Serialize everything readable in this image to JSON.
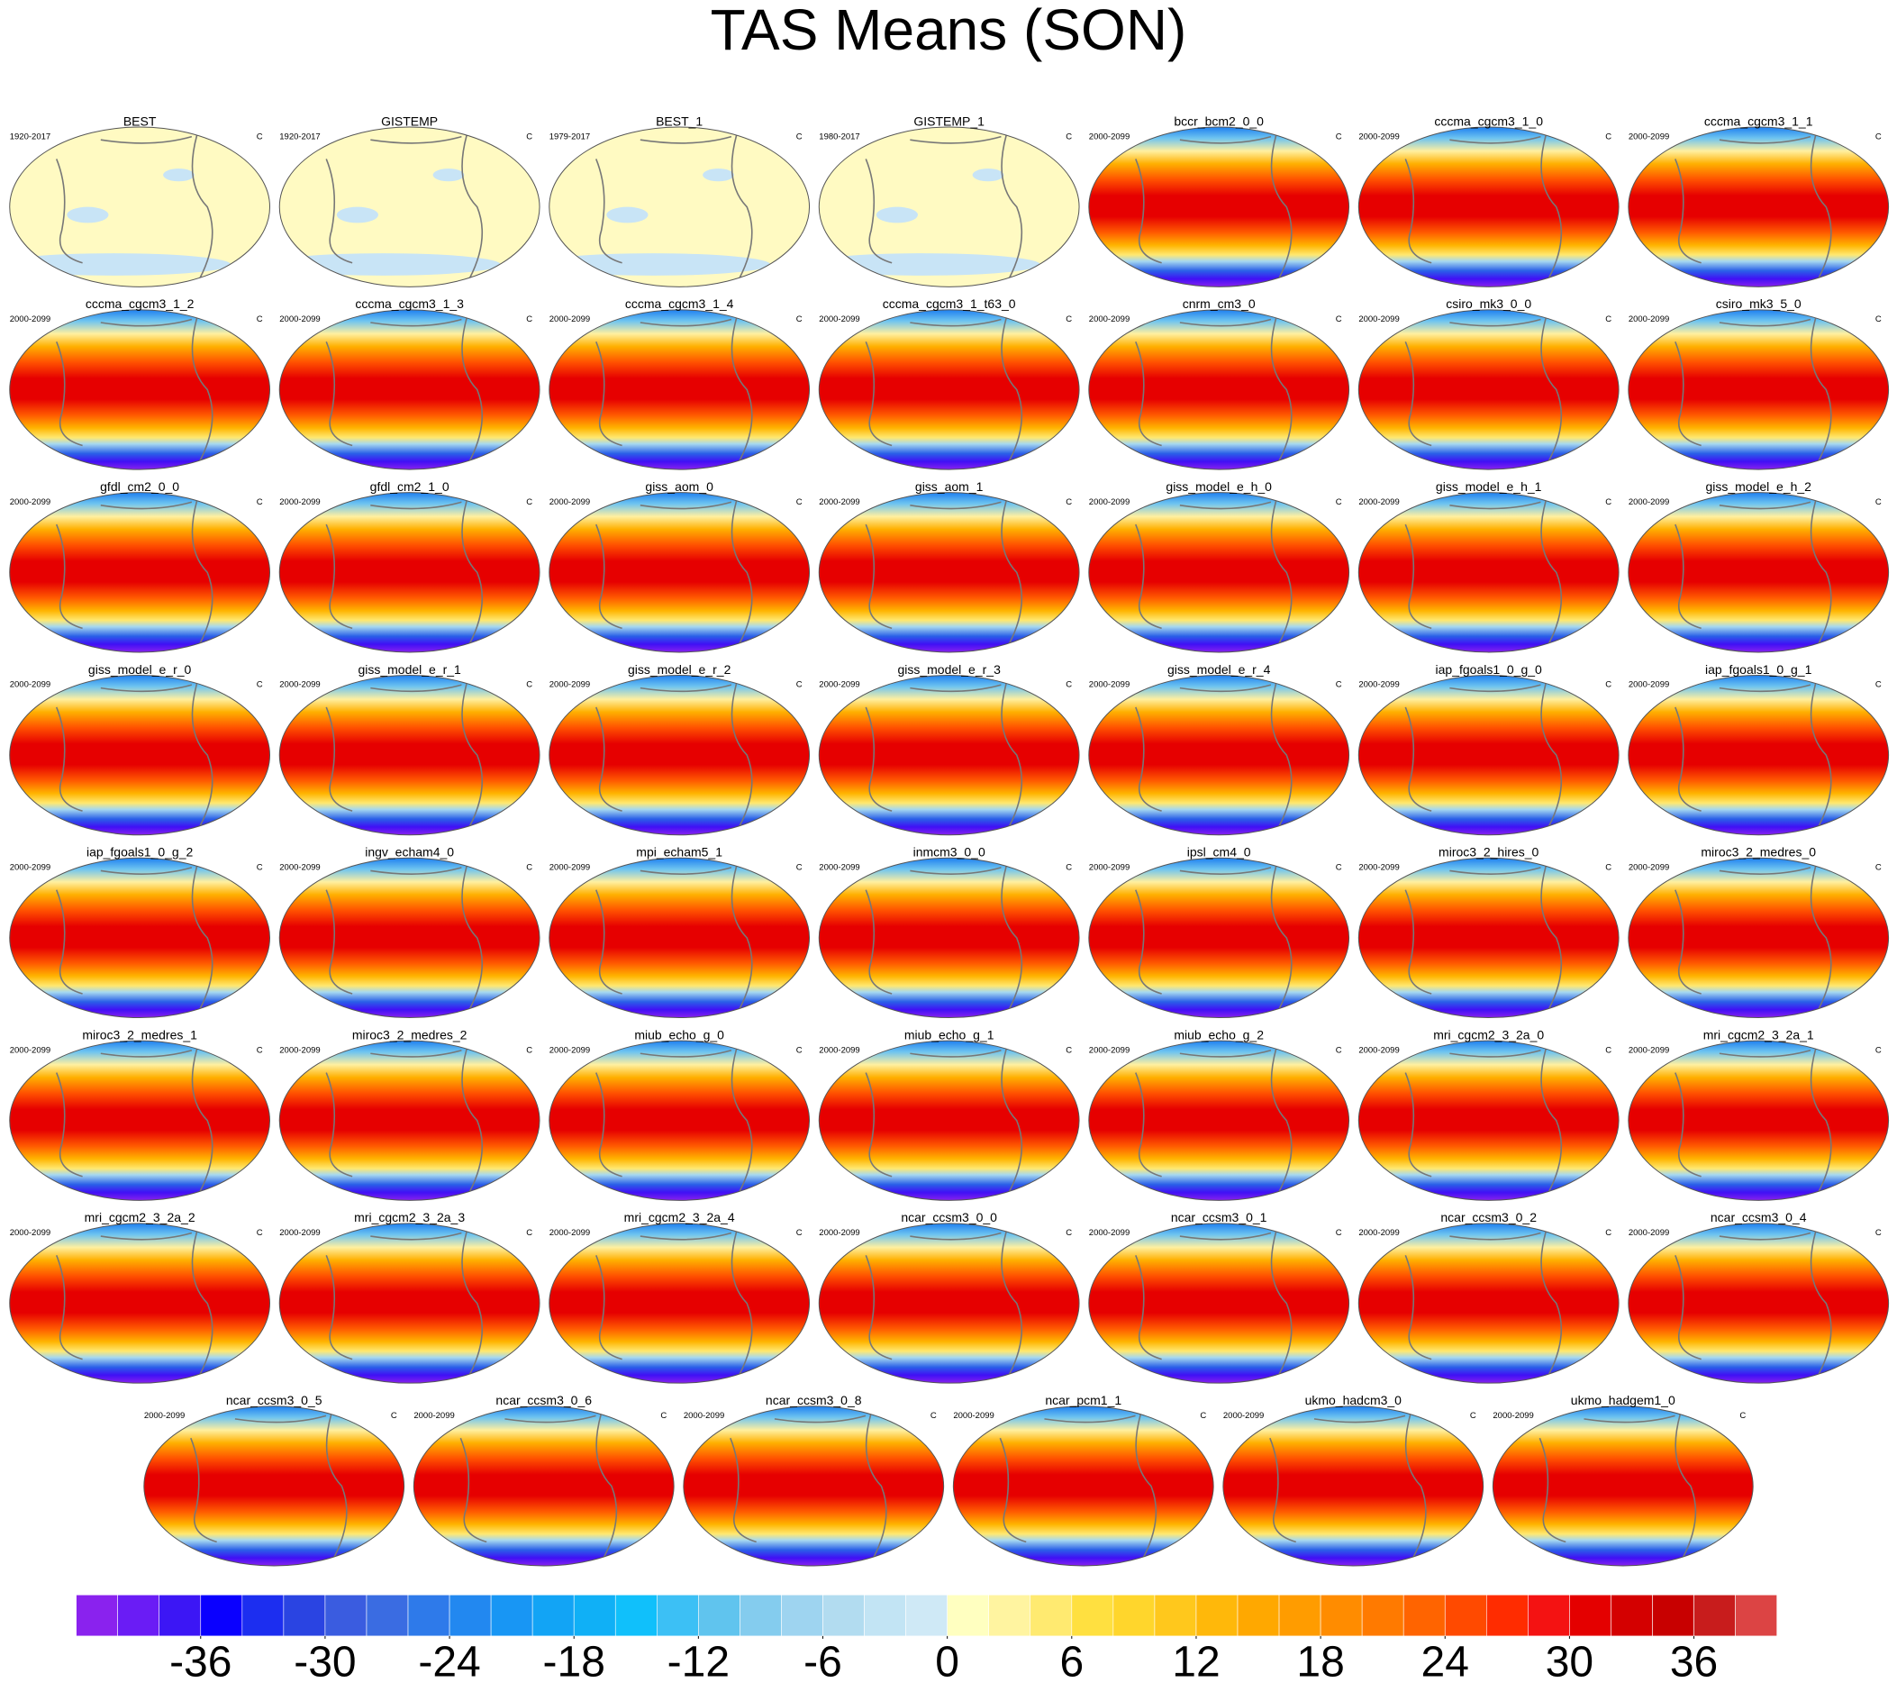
{
  "chart_data": {
    "type": "map-panels",
    "title": "TAS Means (SON)",
    "panels": [
      {
        "title": "BEST",
        "period": "1920-2017",
        "units": "C"
      },
      {
        "title": "GISTEMP",
        "period": "1920-2017",
        "units": "C"
      },
      {
        "title": "BEST_1",
        "period": "1979-2017",
        "units": "C"
      },
      {
        "title": "GISTEMP_1",
        "period": "1980-2017",
        "units": "C"
      },
      {
        "title": "bccr_bcm2_0_0",
        "period": "2000-2099",
        "units": "C"
      },
      {
        "title": "cccma_cgcm3_1_0",
        "period": "2000-2099",
        "units": "C"
      },
      {
        "title": "cccma_cgcm3_1_1",
        "period": "2000-2099",
        "units": "C"
      },
      {
        "title": "cccma_cgcm3_1_2",
        "period": "2000-2099",
        "units": "C"
      },
      {
        "title": "cccma_cgcm3_1_3",
        "period": "2000-2099",
        "units": "C"
      },
      {
        "title": "cccma_cgcm3_1_4",
        "period": "2000-2099",
        "units": "C"
      },
      {
        "title": "cccma_cgcm3_1_t63_0",
        "period": "2000-2099",
        "units": "C"
      },
      {
        "title": "cnrm_cm3_0",
        "period": "2000-2099",
        "units": "C"
      },
      {
        "title": "csiro_mk3_0_0",
        "period": "2000-2099",
        "units": "C"
      },
      {
        "title": "csiro_mk3_5_0",
        "period": "2000-2099",
        "units": "C"
      },
      {
        "title": "gfdl_cm2_0_0",
        "period": "2000-2099",
        "units": "C"
      },
      {
        "title": "gfdl_cm2_1_0",
        "period": "2000-2099",
        "units": "C"
      },
      {
        "title": "giss_aom_0",
        "period": "2000-2099",
        "units": "C"
      },
      {
        "title": "giss_aom_1",
        "period": "2000-2099",
        "units": "C"
      },
      {
        "title": "giss_model_e_h_0",
        "period": "2000-2099",
        "units": "C"
      },
      {
        "title": "giss_model_e_h_1",
        "period": "2000-2099",
        "units": "C"
      },
      {
        "title": "giss_model_e_h_2",
        "period": "2000-2099",
        "units": "C"
      },
      {
        "title": "giss_model_e_r_0",
        "period": "2000-2099",
        "units": "C"
      },
      {
        "title": "giss_model_e_r_1",
        "period": "2000-2099",
        "units": "C"
      },
      {
        "title": "giss_model_e_r_2",
        "period": "2000-2099",
        "units": "C"
      },
      {
        "title": "giss_model_e_r_3",
        "period": "2000-2099",
        "units": "C"
      },
      {
        "title": "giss_model_e_r_4",
        "period": "2000-2099",
        "units": "C"
      },
      {
        "title": "iap_fgoals1_0_g_0",
        "period": "2000-2099",
        "units": "C"
      },
      {
        "title": "iap_fgoals1_0_g_1",
        "period": "2000-2099",
        "units": "C"
      },
      {
        "title": "iap_fgoals1_0_g_2",
        "period": "2000-2099",
        "units": "C"
      },
      {
        "title": "ingv_echam4_0",
        "period": "2000-2099",
        "units": "C"
      },
      {
        "title": "mpi_echam5_1",
        "period": "2000-2099",
        "units": "C"
      },
      {
        "title": "inmcm3_0_0",
        "period": "2000-2099",
        "units": "C"
      },
      {
        "title": "ipsl_cm4_0",
        "period": "2000-2099",
        "units": "C"
      },
      {
        "title": "miroc3_2_hires_0",
        "period": "2000-2099",
        "units": "C"
      },
      {
        "title": "miroc3_2_medres_0",
        "period": "2000-2099",
        "units": "C"
      },
      {
        "title": "miroc3_2_medres_1",
        "period": "2000-2099",
        "units": "C"
      },
      {
        "title": "miroc3_2_medres_2",
        "period": "2000-2099",
        "units": "C"
      },
      {
        "title": "miub_echo_g_0",
        "period": "2000-2099",
        "units": "C"
      },
      {
        "title": "miub_echo_g_1",
        "period": "2000-2099",
        "units": "C"
      },
      {
        "title": "miub_echo_g_2",
        "period": "2000-2099",
        "units": "C"
      },
      {
        "title": "mri_cgcm2_3_2a_0",
        "period": "2000-2099",
        "units": "C"
      },
      {
        "title": "mri_cgcm2_3_2a_1",
        "period": "2000-2099",
        "units": "C"
      },
      {
        "title": "mri_cgcm2_3_2a_2",
        "period": "2000-2099",
        "units": "C"
      },
      {
        "title": "mri_cgcm2_3_2a_3",
        "period": "2000-2099",
        "units": "C"
      },
      {
        "title": "mri_cgcm2_3_2a_4",
        "period": "2000-2099",
        "units": "C"
      },
      {
        "title": "ncar_ccsm3_0_0",
        "period": "2000-2099",
        "units": "C"
      },
      {
        "title": "ncar_ccsm3_0_1",
        "period": "2000-2099",
        "units": "C"
      },
      {
        "title": "ncar_ccsm3_0_2",
        "period": "2000-2099",
        "units": "C"
      },
      {
        "title": "ncar_ccsm3_0_4",
        "period": "2000-2099",
        "units": "C"
      },
      {
        "title": "ncar_ccsm3_0_5",
        "period": "2000-2099",
        "units": "C"
      },
      {
        "title": "ncar_ccsm3_0_6",
        "period": "2000-2099",
        "units": "C"
      },
      {
        "title": "ncar_ccsm3_0_8",
        "period": "2000-2099",
        "units": "C"
      },
      {
        "title": "ncar_pcm1_1",
        "period": "2000-2099",
        "units": "C"
      },
      {
        "title": "ukmo_hadcm3_0",
        "period": "2000-2099",
        "units": "C"
      },
      {
        "title": "ukmo_hadgem1_0",
        "period": "2000-2099",
        "units": "C"
      }
    ],
    "colorbar": {
      "lim": [
        -42,
        42
      ],
      "levels": [
        -40,
        -38,
        -36,
        -34,
        -32,
        -30,
        -28,
        -26,
        -24,
        -22,
        -20,
        -18,
        -16,
        -14,
        -12,
        -10,
        -8,
        -6,
        -4,
        -2,
        0,
        2,
        4,
        6,
        8,
        10,
        12,
        14,
        16,
        18,
        20,
        22,
        24,
        26,
        28,
        30,
        32,
        34,
        36,
        38,
        40
      ],
      "colors": [
        "#8a22ee",
        "#6a1cf5",
        "#3c16f5",
        "#0a00ff",
        "#1c2ef0",
        "#2a44e2",
        "#3a5ce0",
        "#3a6ce2",
        "#2e7aea",
        "#2288f0",
        "#1896f4",
        "#12a4f5",
        "#10b0f6",
        "#10c0fb",
        "#3cc0f5",
        "#60c4ee",
        "#84ccee",
        "#9ed4f0",
        "#b2dcf0",
        "#c2e4f4",
        "#cfe9f6",
        "#ffffc0",
        "#fff4a0",
        "#ffea70",
        "#ffe040",
        "#ffd62c",
        "#ffc81c",
        "#ffb80a",
        "#ffa800",
        "#ff9c00",
        "#ff8c00",
        "#ff7a00",
        "#ff6400",
        "#ff4a00",
        "#ff2c00",
        "#f41212",
        "#e40000",
        "#d40000",
        "#c80000",
        "#c81c1c",
        "#dc4444",
        "#ec7272",
        "#ffb4b4"
      ],
      "ticks": [
        -36,
        -30,
        -24,
        -18,
        -12,
        -6,
        0,
        6,
        12,
        18,
        24,
        30,
        36
      ]
    }
  }
}
